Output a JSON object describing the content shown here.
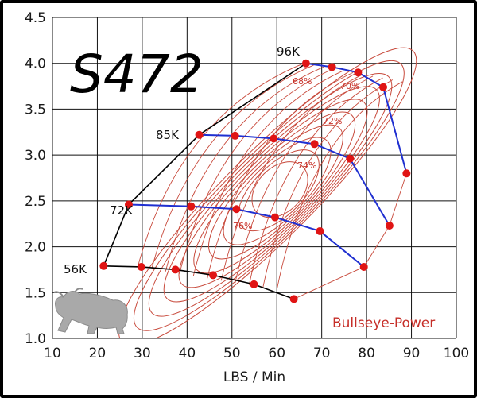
{
  "chart_data": {
    "type": "scatter",
    "title": "S472",
    "xlabel": "LBS / Min",
    "ylabel": "",
    "xlim": [
      10,
      100
    ],
    "ylim": [
      1.0,
      4.5
    ],
    "x_ticks": [
      "10",
      "20",
      "30",
      "40",
      "50",
      "60",
      "70",
      "80",
      "90",
      "100"
    ],
    "y_ticks": [
      "1.0",
      "1.5",
      "2.0",
      "2.5",
      "3.0",
      "3.5",
      "4.0",
      "4.5"
    ],
    "grid": true,
    "speed_lines": [
      {
        "name": "96K",
        "points": [
          [
            66.5,
            4.0
          ],
          [
            72.3,
            3.96
          ],
          [
            78.1,
            3.9
          ],
          [
            83.7,
            3.74
          ],
          [
            88.9,
            2.8
          ]
        ]
      },
      {
        "name": "85K",
        "points": [
          [
            42.7,
            3.22
          ],
          [
            50.7,
            3.21
          ],
          [
            59.3,
            3.18
          ],
          [
            68.4,
            3.12
          ],
          [
            76.3,
            2.96
          ],
          [
            85.1,
            2.23
          ]
        ]
      },
      {
        "name": "72K",
        "points": [
          [
            27.0,
            2.46
          ],
          [
            40.9,
            2.44
          ],
          [
            51.0,
            2.41
          ],
          [
            59.6,
            2.32
          ],
          [
            69.6,
            2.17
          ],
          [
            79.4,
            1.78
          ]
        ]
      },
      {
        "name": "56K",
        "points": [
          [
            21.4,
            1.79
          ],
          [
            29.8,
            1.78
          ],
          [
            37.4,
            1.75
          ],
          [
            45.8,
            1.69
          ],
          [
            54.9,
            1.59
          ],
          [
            63.8,
            1.43
          ]
        ]
      }
    ],
    "efficiency_labels": [
      "68%",
      "70%",
      "72%",
      "74%",
      "76%"
    ],
    "colors": {
      "speed_line": "#1f2fd0",
      "point": "#e01414",
      "island": "#c84a3c",
      "boundary": "#000000"
    }
  },
  "brand": {
    "text": "Bullseye-Power",
    "logo": "bull-logo-icon"
  }
}
